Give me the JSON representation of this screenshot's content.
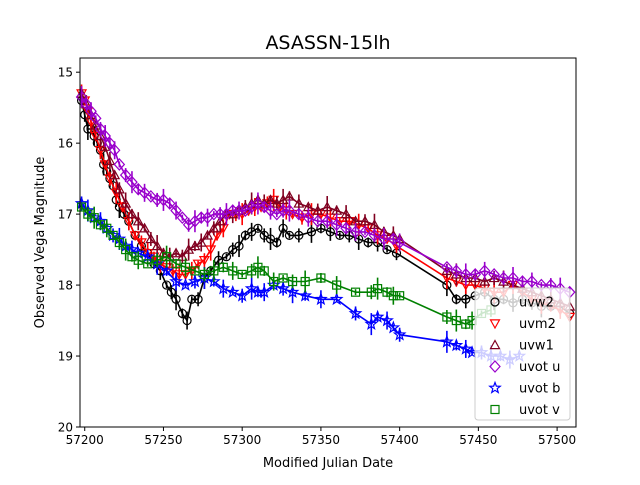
{
  "chart_data": {
    "type": "scatter",
    "title": "ASASSN-15lh",
    "xlabel": "Modified Julian Date",
    "ylabel": "Observed Vega Magnitude",
    "xlim": [
      57197,
      57512
    ],
    "ylim": [
      20,
      14.8
    ],
    "y_inverted": true,
    "x_ticks": [
      57200,
      57250,
      57300,
      57350,
      57400,
      57450,
      57500
    ],
    "y_ticks": [
      15,
      16,
      17,
      18,
      19,
      20
    ],
    "grid": false,
    "legend_position": "lower right",
    "series": [
      {
        "name": "uvw2",
        "color": "#000000",
        "marker": "circle",
        "x": [
          57198,
          57200,
          57202,
          57204,
          57206,
          57208,
          57210,
          57212,
          57214,
          57216,
          57218,
          57220,
          57222,
          57225,
          57228,
          57232,
          57236,
          57240,
          57244,
          57248,
          57252,
          57255,
          57258,
          57262,
          57265,
          57268,
          57272,
          57276,
          57280,
          57285,
          57290,
          57294,
          57298,
          57302,
          57306,
          57310,
          57314,
          57318,
          57322,
          57326,
          57330,
          57336,
          57344,
          57350,
          57356,
          57362,
          57368,
          57374,
          57380,
          57386,
          57392,
          57398,
          57430,
          57436,
          57442,
          57448,
          57454,
          57460,
          57466,
          57472,
          57478,
          57484,
          57490,
          57496,
          57502,
          57508
        ],
        "y": [
          15.4,
          15.6,
          15.8,
          15.8,
          15.9,
          16.0,
          16.1,
          16.3,
          16.4,
          16.5,
          16.6,
          16.8,
          16.9,
          17.0,
          17.1,
          17.3,
          17.45,
          17.55,
          17.7,
          17.8,
          18.0,
          18.1,
          18.2,
          18.4,
          18.5,
          18.2,
          18.2,
          17.9,
          17.8,
          17.65,
          17.6,
          17.5,
          17.45,
          17.3,
          17.25,
          17.2,
          17.3,
          17.35,
          17.4,
          17.2,
          17.3,
          17.3,
          17.25,
          17.2,
          17.25,
          17.3,
          17.3,
          17.35,
          17.4,
          17.4,
          17.5,
          17.55,
          18.0,
          18.2,
          18.2,
          18.15,
          18.1,
          18.2,
          18.2,
          18.25,
          18.2,
          18.25,
          18.3,
          18.3,
          18.3,
          18.4
        ]
      },
      {
        "name": "uvm2",
        "color": "#ff0000",
        "marker": "triangle-down",
        "x": [
          57198,
          57200,
          57202,
          57204,
          57207,
          57210,
          57213,
          57216,
          57220,
          57224,
          57228,
          57232,
          57236,
          57240,
          57244,
          57248,
          57252,
          57256,
          57260,
          57264,
          57268,
          57272,
          57276,
          57280,
          57284,
          57288,
          57292,
          57296,
          57300,
          57304,
          57308,
          57312,
          57316,
          57320,
          57324,
          57328,
          57332,
          57338,
          57344,
          57350,
          57356,
          57362,
          57368,
          57374,
          57380,
          57386,
          57392,
          57398,
          57430,
          57436,
          57442,
          57448,
          57454,
          57460,
          57466,
          57472,
          57478,
          57484,
          57490,
          57496,
          57502,
          57508
        ],
        "y": [
          15.3,
          15.4,
          15.55,
          15.7,
          15.9,
          16.1,
          16.3,
          16.5,
          16.7,
          16.9,
          17.1,
          17.3,
          17.4,
          17.55,
          17.6,
          17.7,
          17.75,
          17.8,
          17.85,
          17.85,
          17.8,
          17.7,
          17.65,
          17.5,
          17.3,
          17.2,
          17.0,
          17.0,
          17.0,
          16.95,
          16.9,
          16.9,
          16.85,
          16.8,
          16.9,
          16.95,
          17.0,
          17.05,
          17.0,
          17.0,
          17.05,
          17.1,
          17.1,
          17.15,
          17.2,
          17.3,
          17.35,
          17.45,
          17.9,
          17.95,
          18.0,
          18.0,
          18.05,
          18.1,
          18.1,
          18.0,
          18.1,
          18.2,
          18.25,
          18.3,
          18.35,
          18.45
        ]
      },
      {
        "name": "uvw1",
        "color": "#800020",
        "marker": "triangle-up",
        "x": [
          57198,
          57201,
          57204,
          57207,
          57210,
          57213,
          57216,
          57219,
          57222,
          57226,
          57230,
          57234,
          57238,
          57242,
          57246,
          57250,
          57254,
          57258,
          57262,
          57266,
          57270,
          57274,
          57278,
          57282,
          57286,
          57290,
          57294,
          57298,
          57302,
          57306,
          57310,
          57314,
          57318,
          57322,
          57326,
          57330,
          57336,
          57342,
          57348,
          57354,
          57360,
          57366,
          57372,
          57378,
          57384,
          57390,
          57396,
          57400,
          57430,
          57436,
          57442,
          57448,
          57454,
          57460,
          57466,
          57472,
          57478,
          57484,
          57490,
          57496,
          57502,
          57508
        ],
        "y": [
          15.3,
          15.45,
          15.6,
          15.75,
          15.9,
          16.05,
          16.25,
          16.45,
          16.65,
          16.85,
          17.0,
          17.1,
          17.2,
          17.35,
          17.45,
          17.55,
          17.6,
          17.55,
          17.6,
          17.5,
          17.45,
          17.4,
          17.3,
          17.2,
          17.1,
          17.0,
          17.0,
          16.95,
          16.9,
          16.85,
          16.8,
          16.85,
          16.8,
          16.85,
          16.8,
          16.75,
          16.85,
          16.9,
          16.95,
          16.9,
          16.95,
          17.0,
          17.1,
          17.1,
          17.15,
          17.25,
          17.3,
          17.35,
          17.8,
          17.85,
          17.9,
          17.9,
          17.95,
          17.9,
          17.95,
          18.0,
          18.05,
          18.1,
          18.15,
          18.2,
          18.25,
          18.3
        ]
      },
      {
        "name": "uvot u",
        "color": "#9900cc",
        "marker": "diamond",
        "x": [
          57198,
          57201,
          57204,
          57207,
          57210,
          57213,
          57216,
          57219,
          57222,
          57226,
          57230,
          57234,
          57238,
          57242,
          57246,
          57250,
          57254,
          57258,
          57262,
          57266,
          57270,
          57274,
          57278,
          57282,
          57286,
          57290,
          57294,
          57298,
          57302,
          57306,
          57310,
          57314,
          57318,
          57322,
          57326,
          57330,
          57336,
          57342,
          57348,
          57354,
          57360,
          57366,
          57372,
          57378,
          57384,
          57390,
          57396,
          57400,
          57430,
          57436,
          57442,
          57448,
          57454,
          57460,
          57466,
          57472,
          57478,
          57484,
          57490,
          57496,
          57502,
          57508
        ],
        "y": [
          15.35,
          15.45,
          15.55,
          15.65,
          15.8,
          15.9,
          16.0,
          16.1,
          16.3,
          16.45,
          16.55,
          16.65,
          16.7,
          16.75,
          16.8,
          16.8,
          16.85,
          16.95,
          17.05,
          17.15,
          17.1,
          17.05,
          17.05,
          17.0,
          17.0,
          17.0,
          16.95,
          16.95,
          16.95,
          16.9,
          16.85,
          16.9,
          16.95,
          17.0,
          16.95,
          16.95,
          17.0,
          17.05,
          17.1,
          17.1,
          17.15,
          17.2,
          17.25,
          17.25,
          17.3,
          17.35,
          17.35,
          17.4,
          17.75,
          17.8,
          17.85,
          17.85,
          17.8,
          17.85,
          17.9,
          17.9,
          17.95,
          17.95,
          18.0,
          18.0,
          18.05,
          18.1
        ]
      },
      {
        "name": "uvot b",
        "color": "#0000ff",
        "marker": "star",
        "x": [
          57198,
          57202,
          57206,
          57210,
          57214,
          57218,
          57222,
          57226,
          57230,
          57234,
          57240,
          57246,
          57252,
          57258,
          57264,
          57270,
          57276,
          57282,
          57288,
          57294,
          57300,
          57306,
          57310,
          57314,
          57320,
          57326,
          57332,
          57340,
          57350,
          57360,
          57372,
          57382,
          57386,
          57392,
          57396,
          57400,
          57430,
          57436,
          57442,
          57446,
          57452,
          57458,
          57464,
          57470,
          57476
        ],
        "y": [
          16.85,
          16.95,
          17.05,
          17.1,
          17.2,
          17.3,
          17.35,
          17.45,
          17.5,
          17.55,
          17.6,
          17.7,
          17.8,
          17.95,
          18.0,
          17.95,
          17.9,
          17.95,
          18.05,
          18.1,
          18.15,
          18.05,
          18.1,
          18.1,
          18.0,
          18.05,
          18.1,
          18.15,
          18.2,
          18.2,
          18.4,
          18.55,
          18.45,
          18.5,
          18.6,
          18.7,
          18.8,
          18.85,
          18.9,
          18.95,
          18.95,
          19.0,
          19.0,
          19.05,
          19.0
        ]
      },
      {
        "name": "uvot v",
        "color": "#008000",
        "marker": "square",
        "x": [
          57198,
          57202,
          57206,
          57210,
          57214,
          57218,
          57222,
          57226,
          57230,
          57234,
          57240,
          57246,
          57252,
          57258,
          57264,
          57270,
          57276,
          57282,
          57288,
          57294,
          57300,
          57306,
          57310,
          57314,
          57320,
          57326,
          57332,
          57340,
          57350,
          57360,
          57372,
          57382,
          57386,
          57392,
          57396,
          57400,
          57430,
          57436,
          57442,
          57446,
          57452,
          57458
        ],
        "y": [
          16.9,
          17.0,
          17.05,
          17.15,
          17.2,
          17.3,
          17.4,
          17.5,
          17.6,
          17.65,
          17.7,
          17.65,
          17.6,
          17.7,
          17.75,
          17.8,
          17.85,
          17.8,
          17.75,
          17.8,
          17.85,
          17.8,
          17.75,
          17.8,
          17.95,
          17.9,
          17.95,
          17.95,
          17.9,
          18.0,
          18.1,
          18.1,
          18.05,
          18.1,
          18.15,
          18.15,
          18.45,
          18.5,
          18.55,
          18.5,
          18.4,
          18.35
        ]
      }
    ]
  }
}
